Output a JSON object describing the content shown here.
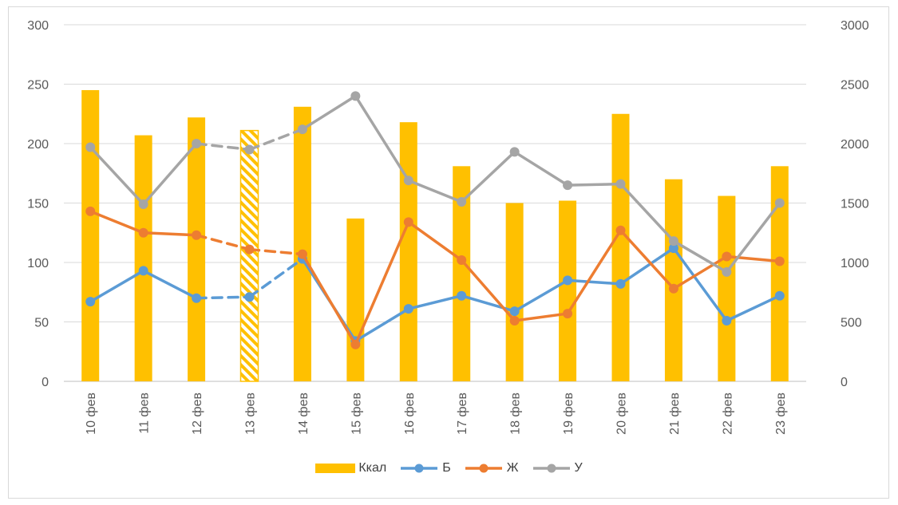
{
  "chart_data": {
    "type": "bar+line",
    "categories": [
      "10 фев",
      "11 фев",
      "12 фев",
      "13 фев",
      "14 фев",
      "15 фев",
      "16 фев",
      "17 фев",
      "18 фев",
      "19 фев",
      "20 фев",
      "21 фев",
      "22 фев",
      "23 фев"
    ],
    "left_axis": {
      "ylim": [
        0,
        300
      ],
      "ticks": [
        "0",
        "50",
        "100",
        "150",
        "200",
        "250",
        "300"
      ]
    },
    "right_axis": {
      "ylim": [
        0,
        3000
      ],
      "ticks": [
        "0",
        "500",
        "1000",
        "1500",
        "2000",
        "2500",
        "3000"
      ]
    },
    "grid": true,
    "legend_position": "bottom",
    "series": [
      {
        "name": "Ккал",
        "type": "bar",
        "axis": "right",
        "color": "#FFC000",
        "values": [
          2450,
          2070,
          2220,
          2110,
          2310,
          1370,
          2180,
          1810,
          1500,
          1520,
          2250,
          1700,
          1560,
          1810
        ],
        "estimated_indices": [
          3
        ]
      },
      {
        "name": "Б",
        "type": "line",
        "axis": "left",
        "color": "#5B9BD5",
        "values": [
          67,
          93,
          70,
          71,
          103,
          34,
          61,
          72,
          59,
          85,
          82,
          112,
          51,
          72
        ],
        "dashed_segments": [
          [
            2,
            4
          ]
        ]
      },
      {
        "name": "Ж",
        "type": "line",
        "axis": "left",
        "color": "#ED7D31",
        "values": [
          143,
          125,
          123,
          111,
          107,
          31,
          134,
          102,
          51,
          57,
          127,
          78,
          105,
          101
        ],
        "dashed_segments": [
          [
            2,
            4
          ]
        ]
      },
      {
        "name": "У",
        "type": "line",
        "axis": "left",
        "color": "#A5A5A5",
        "values": [
          197,
          149,
          200,
          195,
          212,
          240,
          169,
          151,
          193,
          165,
          166,
          118,
          92,
          150
        ],
        "dashed_segments": [
          [
            2,
            4
          ]
        ]
      }
    ]
  }
}
